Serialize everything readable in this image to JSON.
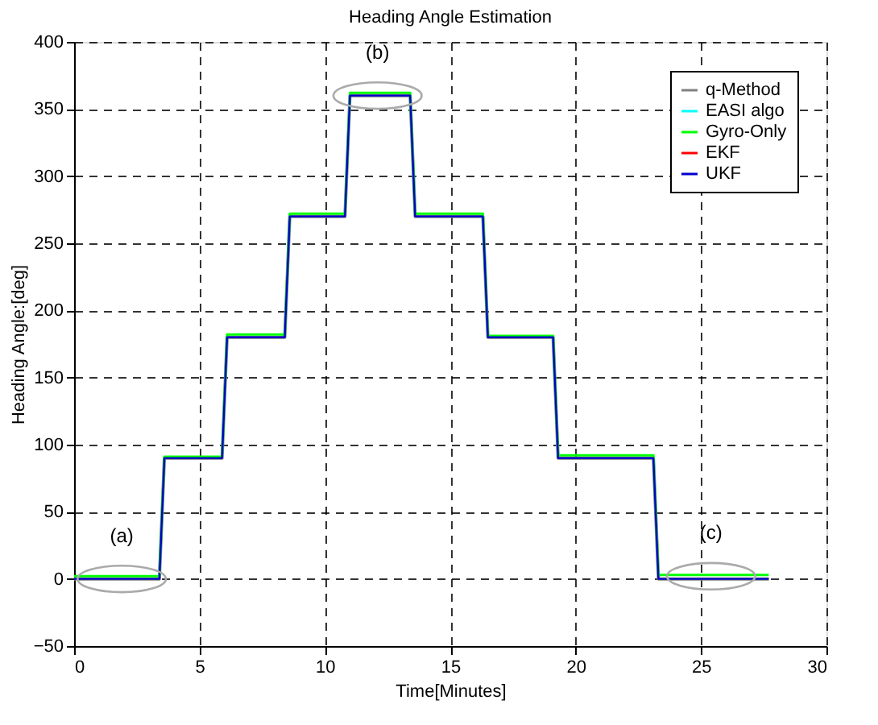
{
  "chart_data": {
    "type": "line",
    "title": "Heading Angle Estimation",
    "xlabel": "Time[Minutes]",
    "ylabel": "Heading Angle:[deg]",
    "x": [
      0,
      3.4,
      3.6,
      5.9,
      6.1,
      8.4,
      8.6,
      10.8,
      11.0,
      13.4,
      13.6,
      16.3,
      16.5,
      19.1,
      19.3,
      23.1,
      23.3,
      27.7
    ],
    "series": [
      {
        "name": "q-Method",
        "color": "#808080",
        "values": [
          0,
          0,
          90,
          90,
          180,
          180,
          270,
          270,
          360,
          360,
          270,
          270,
          180,
          180,
          90,
          90,
          0,
          0
        ]
      },
      {
        "name": "EASI algo",
        "color": "#00ffff",
        "values": [
          null,
          null,
          null,
          null,
          null,
          null,
          null,
          null,
          null,
          null,
          null,
          null,
          null,
          null,
          null,
          null,
          null,
          null
        ]
      },
      {
        "name": "Gyro-Only",
        "color": "#00ff00",
        "values": [
          2,
          2,
          91,
          91,
          182,
          182,
          272,
          272,
          362,
          362,
          272,
          272,
          181,
          181,
          92,
          92,
          3,
          3
        ]
      },
      {
        "name": "EKF",
        "color": "#ff0000",
        "values": [
          null,
          null,
          null,
          null,
          null,
          null,
          null,
          null,
          null,
          null,
          null,
          null,
          null,
          null,
          null,
          null,
          null,
          null
        ]
      },
      {
        "name": "UKF",
        "color": "#0000cc",
        "values": [
          0,
          0,
          90,
          90,
          180,
          180,
          270,
          270,
          360,
          360,
          270,
          270,
          180,
          180,
          90,
          90,
          0,
          0
        ]
      }
    ],
    "xlim": [
      0,
      30
    ],
    "xticks": [
      0,
      5,
      10,
      15,
      20,
      25,
      30
    ],
    "ylim": [
      -50,
      400
    ],
    "yticks": [
      -50,
      0,
      50,
      100,
      150,
      200,
      250,
      300,
      350,
      400
    ],
    "grid": true,
    "legend": "top right",
    "line_style": "solid",
    "marker": "none",
    "annotations": [
      {
        "text": "(a)",
        "x": 1.9,
        "y": 0
      },
      {
        "text": "(b)",
        "x": 12.1,
        "y": 360
      },
      {
        "text": "(c)",
        "x": 25.4,
        "y": 2
      }
    ]
  }
}
